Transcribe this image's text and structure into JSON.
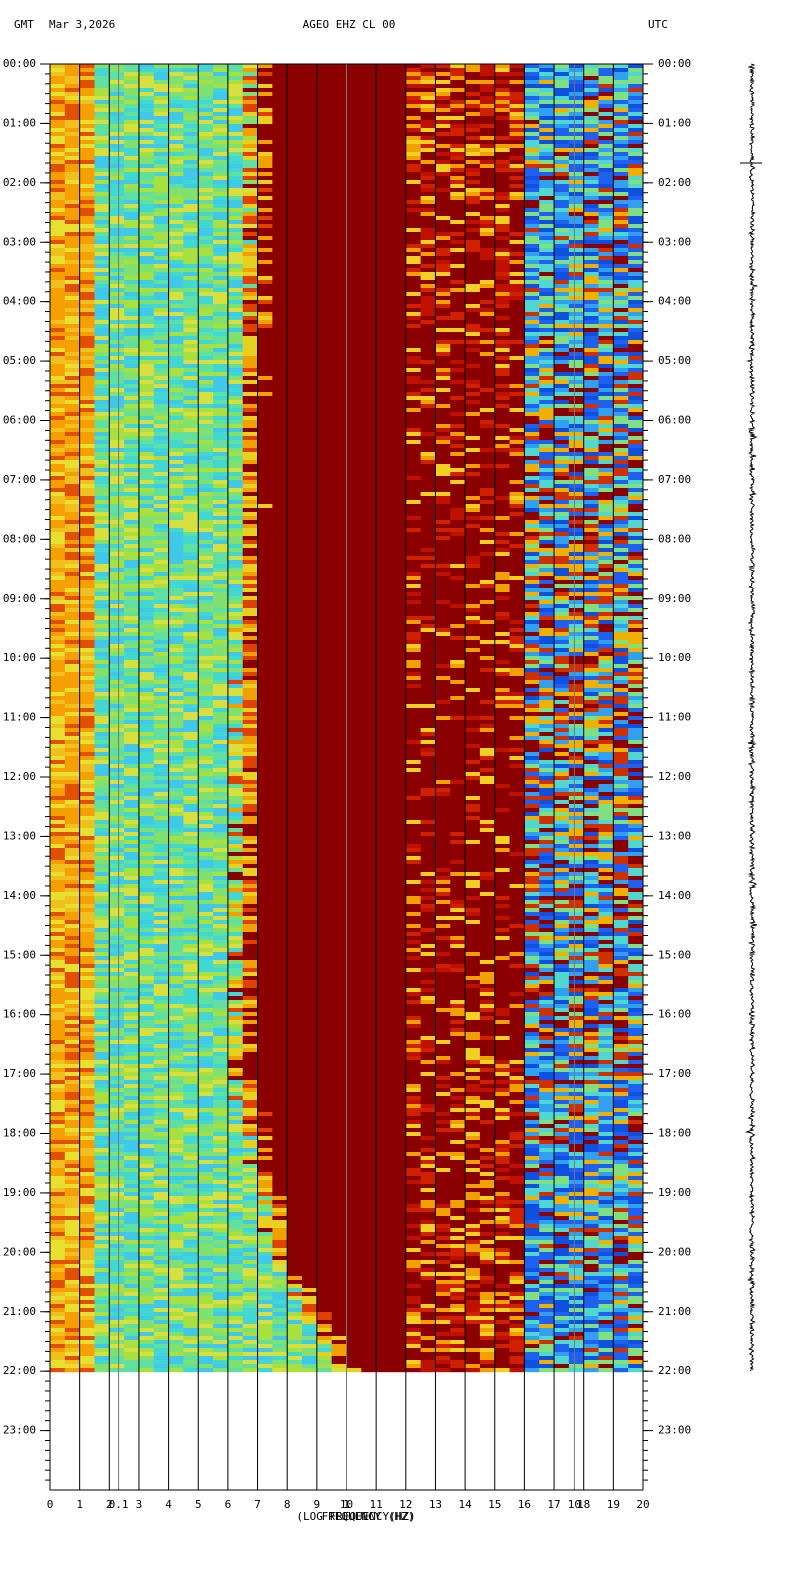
{
  "chart_data": {
    "type": "spectrogram",
    "header_left": "GMT",
    "date": "Mar 3,2026",
    "title": "AGEO EHZ CL 00",
    "header_right": "UTC",
    "xlabel": "FREQUENCY (HZ)",
    "x2label": "(LOG FREQUENCY(HZ)",
    "xlim": [
      0,
      20
    ],
    "xticks": [
      0,
      1,
      2,
      3,
      4,
      5,
      6,
      7,
      8,
      9,
      10,
      11,
      12,
      13,
      14,
      15,
      16,
      17,
      18,
      19,
      20
    ],
    "x2lim": [
      0.05,
      20
    ],
    "x2scale": "log",
    "x2ticks": [
      0.1,
      1,
      10
    ],
    "ylim": [
      0,
      24
    ],
    "y_inverted": true,
    "yticks": [
      {
        "value": 0,
        "label": "00:00"
      },
      {
        "value": 1,
        "label": "01:00"
      },
      {
        "value": 2,
        "label": "02:00"
      },
      {
        "value": 3,
        "label": "03:00"
      },
      {
        "value": 4,
        "label": "04:00"
      },
      {
        "value": 5,
        "label": "05:00"
      },
      {
        "value": 6,
        "label": "06:00"
      },
      {
        "value": 7,
        "label": "07:00"
      },
      {
        "value": 8,
        "label": "08:00"
      },
      {
        "value": 9,
        "label": "09:00"
      },
      {
        "value": 10,
        "label": "10:00"
      },
      {
        "value": 11,
        "label": "11:00"
      },
      {
        "value": 12,
        "label": "12:00"
      },
      {
        "value": 13,
        "label": "13:00"
      },
      {
        "value": 14,
        "label": "14:00"
      },
      {
        "value": 15,
        "label": "15:00"
      },
      {
        "value": 16,
        "label": "16:00"
      },
      {
        "value": 17,
        "label": "17:00"
      },
      {
        "value": 18,
        "label": "18:00"
      },
      {
        "value": 19,
        "label": "19:00"
      },
      {
        "value": 20,
        "label": "20:00"
      },
      {
        "value": 21,
        "label": "21:00"
      },
      {
        "value": 22,
        "label": "22:00"
      },
      {
        "value": 23,
        "label": "23:00"
      }
    ],
    "spectrogram_hours": [
      0,
      22
    ]
  }
}
